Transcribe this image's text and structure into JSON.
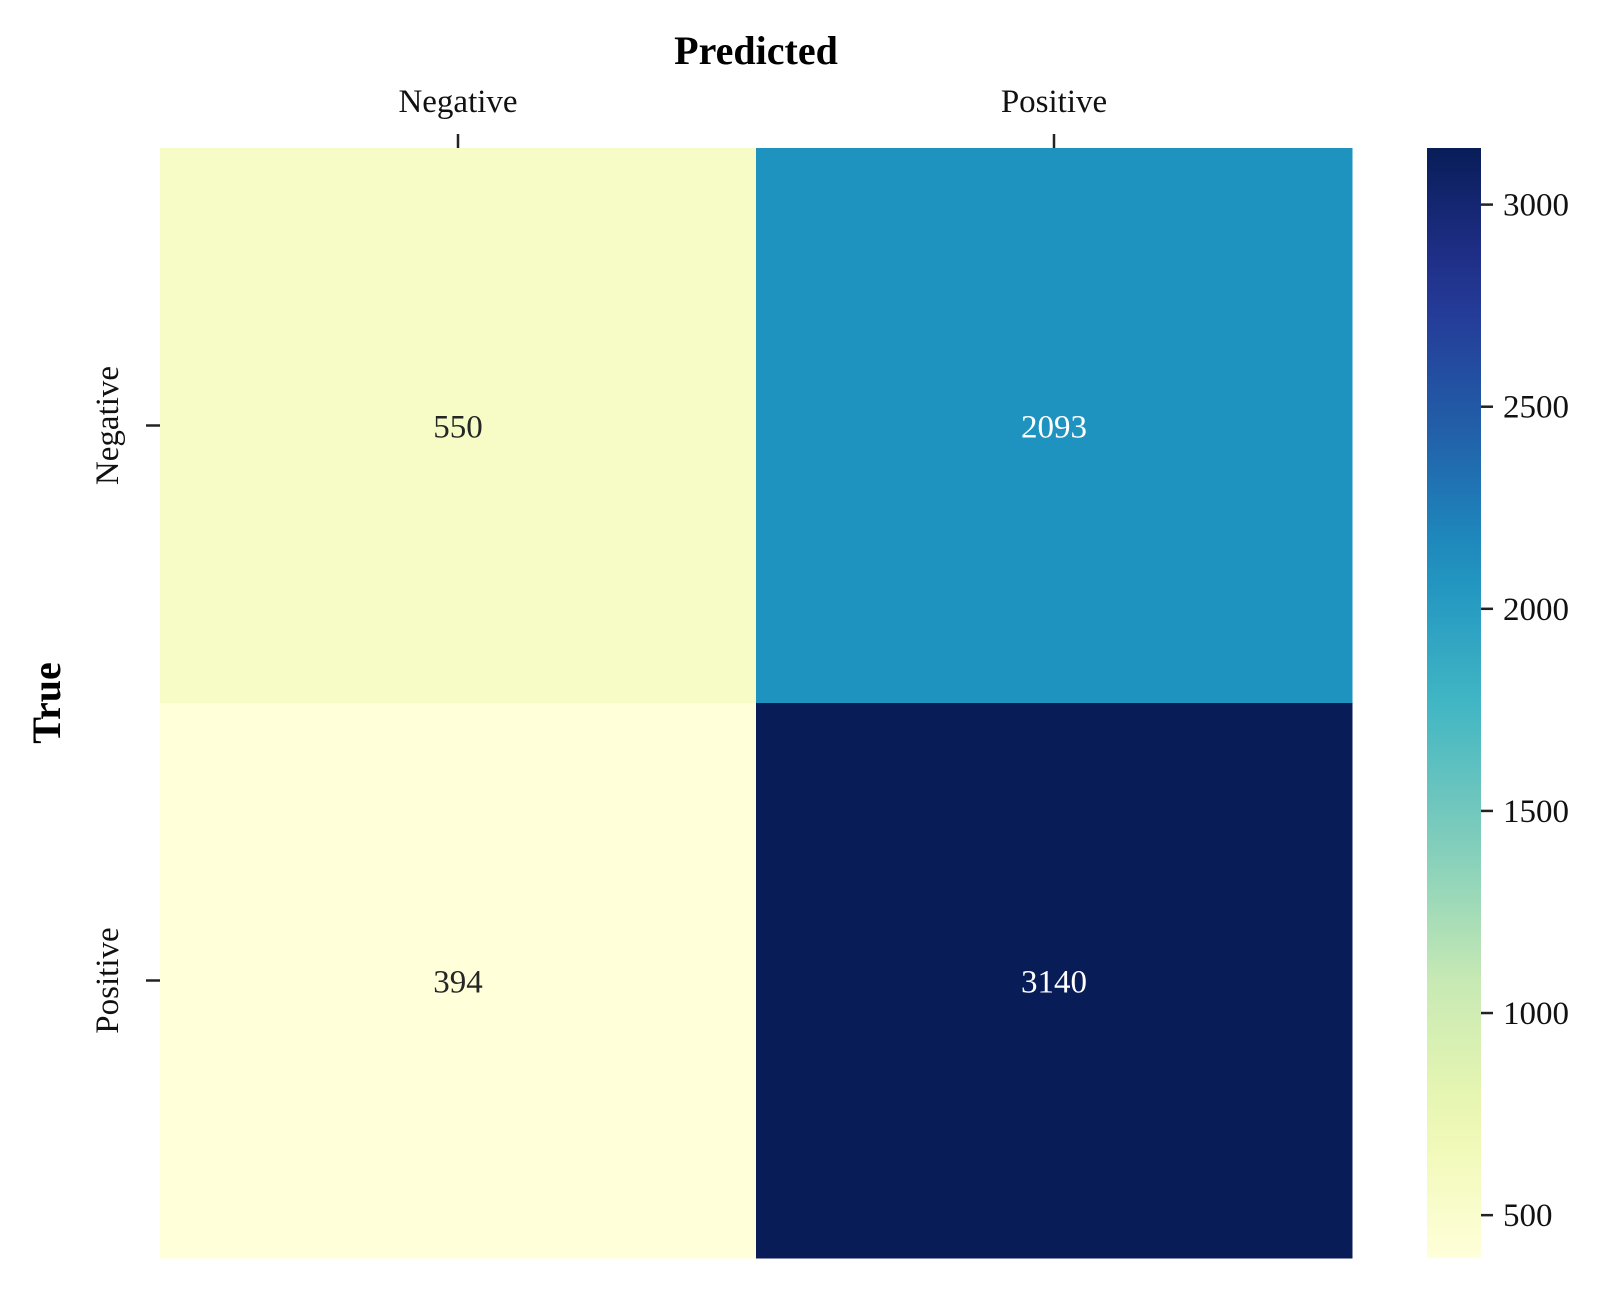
{
  "chart_data": {
    "type": "heatmap",
    "xlabel": "Predicted",
    "ylabel": "True",
    "x_categories": [
      "Negative",
      "Positive"
    ],
    "y_categories": [
      "Negative",
      "Positive"
    ],
    "x_axis_position": "top",
    "values": [
      [
        550,
        2093
      ],
      [
        394,
        3140
      ]
    ],
    "colormap": "YlGnBu",
    "colorbar": {
      "range": [
        394,
        3140
      ],
      "ticks": [
        500,
        1000,
        1500,
        2000,
        2500,
        3000
      ],
      "tick_labels": [
        "500",
        "1000",
        "1500",
        "2000",
        "2500",
        "3000"
      ],
      "placement": "right"
    },
    "annotation_colors": {
      "light_cell": "#262626",
      "dark_cell": "#ffffff"
    },
    "grid": false
  }
}
